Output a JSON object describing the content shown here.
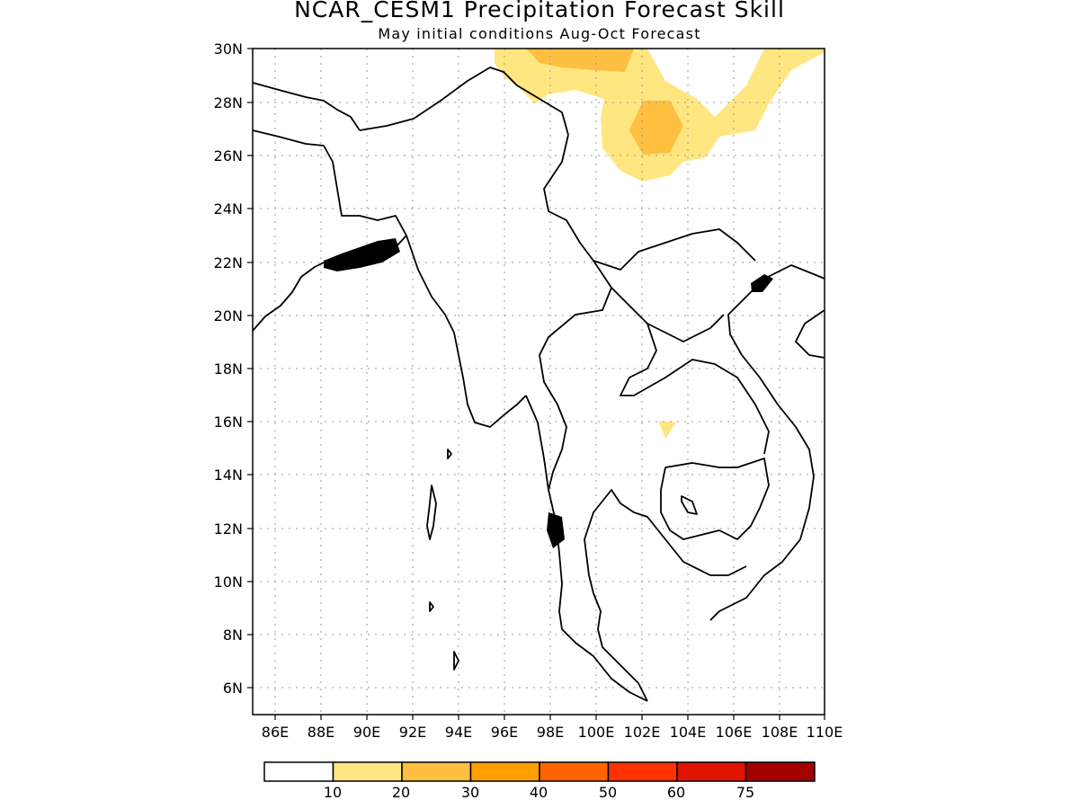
{
  "title": "NCAR_CESM1 Precipitation Forecast Skill",
  "subtitle": "May initial conditions  Aug-Oct Forecast",
  "lat_labels": [
    "30N",
    "28N",
    "26N",
    "24N",
    "22N",
    "20N",
    "18N",
    "16N",
    "14N",
    "12N",
    "10N",
    "8N",
    "6N"
  ],
  "lon_labels": [
    "86E",
    "88E",
    "90E",
    "92E",
    "94E",
    "96E",
    "98E",
    "100E",
    "102E",
    "104E",
    "106E",
    "108E",
    "110E"
  ],
  "colorbar": {
    "labels": [
      "10",
      "20",
      "30",
      "40",
      "50",
      "60",
      "75"
    ],
    "colors": [
      "#ffffff",
      "#ffe680",
      "#ffbf40",
      "#ffa000",
      "#ff6400",
      "#ff3200",
      "#e11400",
      "#a50000"
    ]
  },
  "map_extent": {
    "lon": [
      85,
      110
    ],
    "lat": [
      5,
      30
    ]
  }
}
